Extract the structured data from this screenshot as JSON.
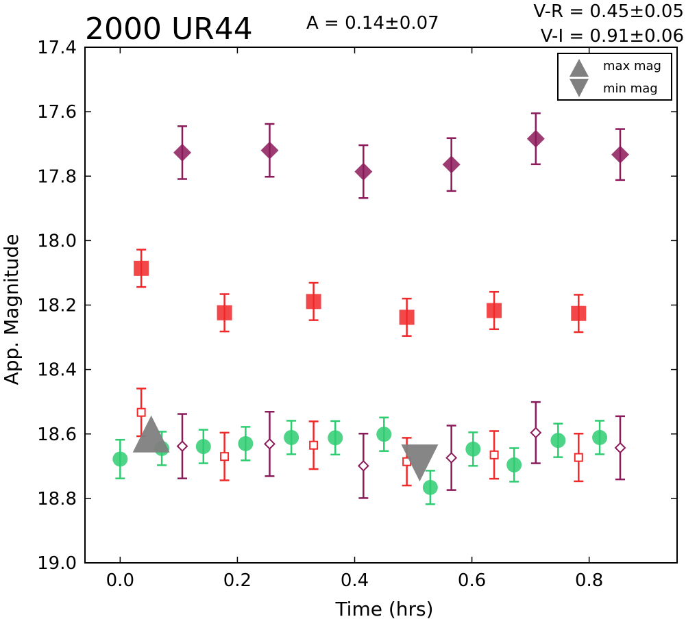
{
  "chart_data": {
    "type": "scatter",
    "title": "2000 UR44",
    "amplitude_label": "A  = 0.14±0.07",
    "color_lines": [
      "V-R = 0.45±0.05",
      "V-I  = 0.91±0.06"
    ],
    "xlabel": "Time (hrs)",
    "ylabel": "App. Magnitude",
    "xlim": [
      -0.06,
      0.95
    ],
    "ylim": [
      19.0,
      17.4
    ],
    "y_inverted": true,
    "grid": false,
    "legend_position": "top-right",
    "x_ticks": [
      0.0,
      0.2,
      0.4,
      0.6,
      0.8
    ],
    "x_tick_labels": [
      "0.0",
      "0.2",
      "0.4",
      "0.6",
      "0.8"
    ],
    "y_ticks": [
      17.4,
      17.6,
      17.8,
      18.0,
      18.2,
      18.4,
      18.6,
      18.8,
      19.0
    ],
    "y_tick_labels": [
      "17.4",
      "17.6",
      "17.8",
      "18.0",
      "18.2",
      "18.4",
      "18.6",
      "18.8",
      "19.0"
    ],
    "legend": [
      {
        "label": "max mag",
        "marker": "triangle-up",
        "color": "#808080"
      },
      {
        "label": "min mag",
        "marker": "triangle-down",
        "color": "#808080"
      }
    ],
    "series": [
      {
        "marker": "diamond",
        "filled": true,
        "color": "#8b1a5a",
        "points": [
          [
            0.106,
            17.727,
            0.082
          ],
          [
            0.255,
            17.72,
            0.082
          ],
          [
            0.415,
            17.786,
            0.082
          ],
          [
            0.565,
            17.764,
            0.082
          ],
          [
            0.709,
            17.684,
            0.079
          ],
          [
            0.853,
            17.733,
            0.079
          ]
        ]
      },
      {
        "marker": "square",
        "filled": true,
        "color": "#f0282a",
        "points": [
          [
            0.036,
            18.086,
            0.058
          ],
          [
            0.178,
            18.224,
            0.058
          ],
          [
            0.33,
            18.189,
            0.058
          ],
          [
            0.489,
            18.238,
            0.058
          ],
          [
            0.638,
            18.217,
            0.058
          ],
          [
            0.782,
            18.226,
            0.058
          ]
        ]
      },
      {
        "marker": "circle",
        "filled": true,
        "color": "#2ecc71",
        "points": [
          [
            0.0,
            18.678,
            0.06
          ],
          [
            0.071,
            18.645,
            0.052
          ],
          [
            0.142,
            18.639,
            0.052
          ],
          [
            0.214,
            18.63,
            0.052
          ],
          [
            0.292,
            18.611,
            0.052
          ],
          [
            0.367,
            18.612,
            0.052
          ],
          [
            0.45,
            18.601,
            0.052
          ],
          [
            0.529,
            18.766,
            0.052
          ],
          [
            0.602,
            18.647,
            0.052
          ],
          [
            0.672,
            18.696,
            0.052
          ],
          [
            0.747,
            18.62,
            0.052
          ],
          [
            0.818,
            18.611,
            0.052
          ]
        ]
      },
      {
        "marker": "diamond",
        "filled": false,
        "color": "#8b1a5a",
        "points": [
          [
            0.106,
            18.638,
            0.1
          ],
          [
            0.255,
            18.631,
            0.1
          ],
          [
            0.415,
            18.699,
            0.1
          ],
          [
            0.565,
            18.674,
            0.1
          ],
          [
            0.709,
            18.596,
            0.095
          ],
          [
            0.853,
            18.643,
            0.098
          ]
        ]
      },
      {
        "marker": "square",
        "filled": false,
        "color": "#f0282a",
        "points": [
          [
            0.036,
            18.533,
            0.074
          ],
          [
            0.178,
            18.67,
            0.074
          ],
          [
            0.33,
            18.635,
            0.074
          ],
          [
            0.489,
            18.686,
            0.074
          ],
          [
            0.638,
            18.665,
            0.074
          ],
          [
            0.782,
            18.673,
            0.074
          ]
        ]
      }
    ],
    "extrema": [
      {
        "kind": "max",
        "marker": "triangle-up",
        "color": "#808080",
        "x": 0.053,
        "y": 18.6
      },
      {
        "kind": "min",
        "marker": "triangle-down",
        "color": "#808080",
        "x": 0.511,
        "y": 18.69
      }
    ]
  }
}
